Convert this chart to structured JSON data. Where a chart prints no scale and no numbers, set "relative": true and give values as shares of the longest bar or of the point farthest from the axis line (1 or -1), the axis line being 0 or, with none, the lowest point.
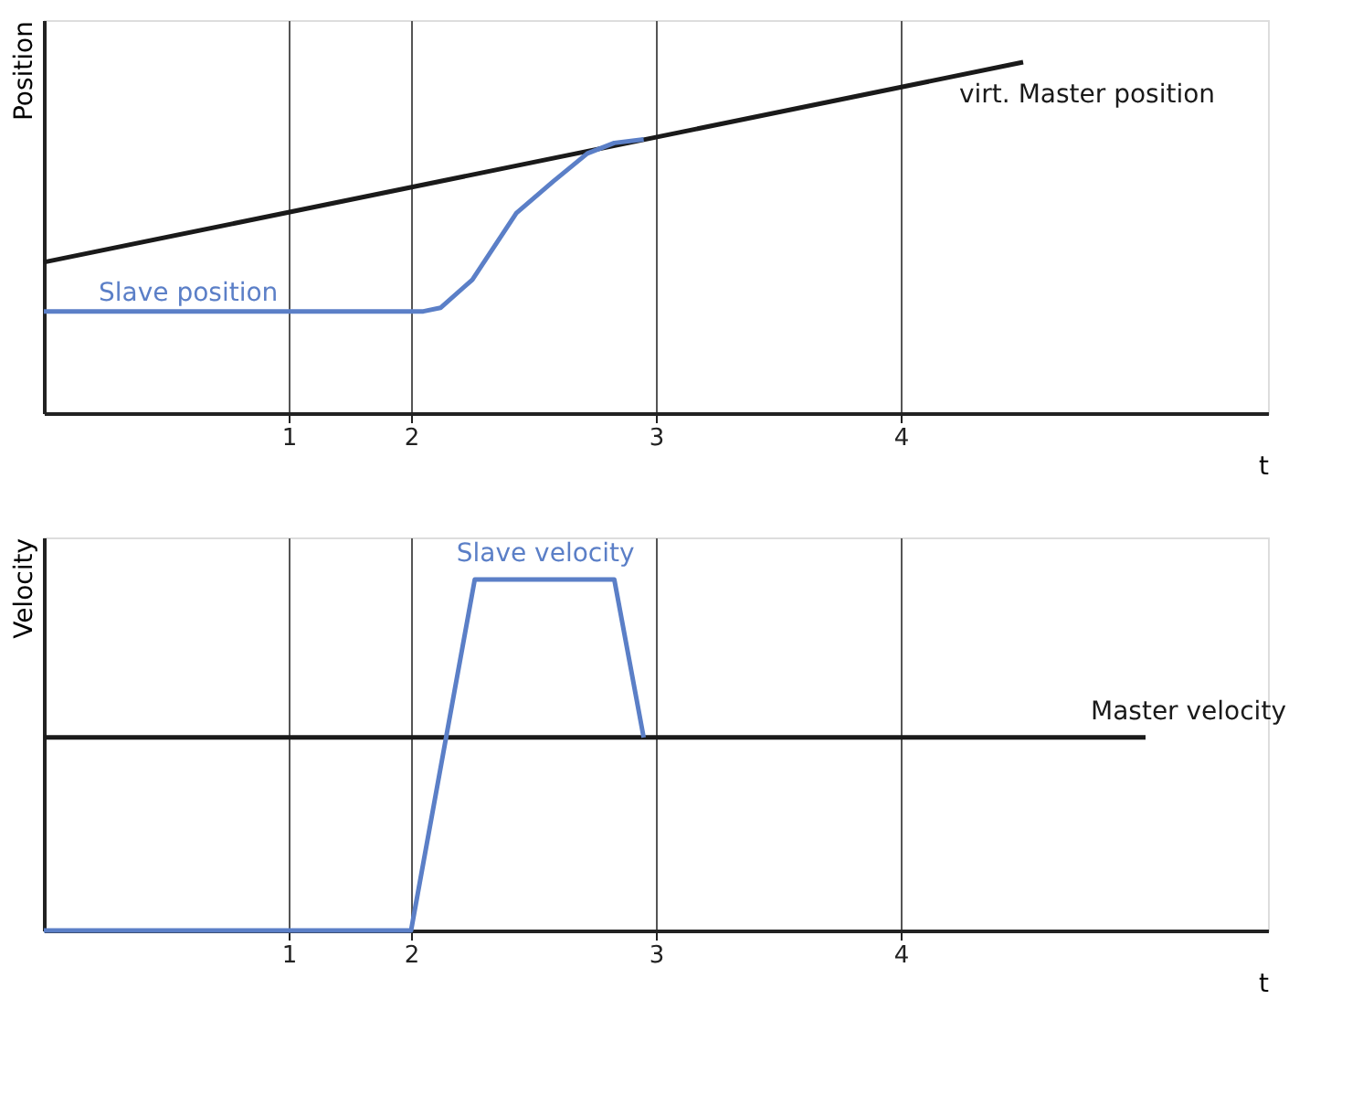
{
  "chart_data": [
    {
      "type": "line",
      "relative": true,
      "ylabel": "Position",
      "xlabel": "t",
      "xlim": [
        0.5,
        5.5
      ],
      "xticks": [
        {
          "value": 1.5,
          "label": "1"
        },
        2,
        3,
        4
      ],
      "grid": "x",
      "legend": false,
      "marker": "none",
      "line_style": "solid",
      "tick_labels": "x",
      "series": [
        {
          "name": "virt. Master position",
          "color": "#1a1a1a",
          "x": [
            0.5,
            4.5
          ],
          "values": [
            0.43,
            1.0
          ]
        },
        {
          "name": "Slave position",
          "color": "#5b7fc7",
          "x": [
            0.5,
            2.05,
            2.12,
            2.25,
            2.43,
            2.58,
            2.72,
            2.83,
            2.95
          ],
          "values": [
            0.29,
            0.29,
            0.3,
            0.38,
            0.57,
            0.66,
            0.74,
            0.77,
            0.78
          ]
        }
      ]
    },
    {
      "type": "line",
      "relative": true,
      "ylabel": "Velocity",
      "xlabel": "t",
      "xlim": [
        0.5,
        5.5
      ],
      "xticks": [
        {
          "value": 1.5,
          "label": "1"
        },
        2,
        3,
        4
      ],
      "grid": "x",
      "legend": false,
      "marker": "none",
      "line_style": "solid",
      "tick_labels": "x",
      "series": [
        {
          "name": "Master velocity",
          "color": "#1a1a1a",
          "x": [
            0.5,
            5.0
          ],
          "values": [
            0.55,
            0.55
          ]
        },
        {
          "name": "Slave velocity",
          "color": "#5b7fc7",
          "x": [
            0.5,
            2.0,
            2.26,
            2.83,
            2.95
          ],
          "values": [
            0,
            0,
            1,
            1,
            0.55
          ]
        }
      ]
    }
  ]
}
